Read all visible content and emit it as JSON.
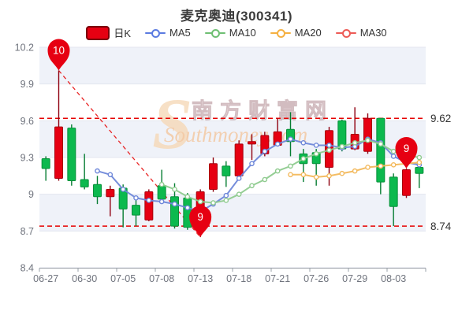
{
  "title": "麦克奥迪(300341)",
  "legend": [
    {
      "label": "日K",
      "type": "candle",
      "color": "#e60012"
    },
    {
      "label": "MA5",
      "type": "line",
      "color": "#5b7be0"
    },
    {
      "label": "MA10",
      "type": "line",
      "color": "#6fbf73"
    },
    {
      "label": "MA20",
      "type": "line",
      "color": "#f5b041"
    },
    {
      "label": "MA30",
      "type": "line",
      "color": "#ed5b56"
    }
  ],
  "watermark": {
    "cn": "南方财富网",
    "en": "Southmoney.com",
    "logo": "S"
  },
  "colors": {
    "up": "#0cb94e",
    "up_border": "#07903a",
    "up_wick": "#067d32",
    "down": "#e60012",
    "down_border": "#a8000d",
    "down_wick": "#8f0010",
    "ma5": "#6e87d9",
    "ma10": "#8fcb8f",
    "ma20": "#f3b95c",
    "ma30": "#f16a6a",
    "ref": "#e60000",
    "marker": "#e60012",
    "marker_text": "#ffffff",
    "grid": "#e3e6ef",
    "band": "#eff2f9",
    "axis": "#9aa0a8",
    "label": "#70747e",
    "ref_label": "#333333",
    "wm_cn_fill": "#ece2e2",
    "wm_cn_stroke": "#d2bcc0",
    "wm_en": "#f3c9a4",
    "wm_logo": "#f6d9b8"
  },
  "chart_data": {
    "type": "candlestick",
    "title": "麦克奥迪(300341)",
    "ylim": [
      8.4,
      10.2
    ],
    "yticks": [
      {
        "label": "10.2",
        "value": 10.2
      },
      {
        "label": "9.9",
        "value": 9.9
      },
      {
        "label": "9.6",
        "value": 9.6
      },
      {
        "label": "9.3",
        "value": 9.3
      },
      {
        "label": "9",
        "value": 9.0
      },
      {
        "label": "8.7",
        "value": 8.7
      },
      {
        "label": "8.4",
        "value": 8.4
      }
    ],
    "x_label_every": 3,
    "x_labels_shown": [
      "06-27",
      "06-30",
      "07-05",
      "07-08",
      "07-13",
      "07-18",
      "07-21",
      "07-26",
      "07-29",
      "08-03"
    ],
    "candles": [
      {
        "date": "06-27",
        "open": 9.21,
        "close": 9.29,
        "low": 9.11,
        "high": 9.31
      },
      {
        "date": "06-28",
        "open": 9.55,
        "close": 9.13,
        "low": 9.11,
        "high": 10.01
      },
      {
        "date": "06-29",
        "open": 9.11,
        "close": 9.54,
        "low": 9.07,
        "high": 9.57
      },
      {
        "date": "06-30",
        "open": 9.06,
        "close": 9.12,
        "low": 9.04,
        "high": 9.33
      },
      {
        "date": "07-01",
        "open": 8.98,
        "close": 9.08,
        "low": 8.92,
        "high": 9.15
      },
      {
        "date": "07-04",
        "open": 9.04,
        "close": 8.98,
        "low": 8.82,
        "high": 9.07
      },
      {
        "date": "07-05",
        "open": 8.88,
        "close": 9.05,
        "low": 8.73,
        "high": 9.08
      },
      {
        "date": "07-06",
        "open": 8.83,
        "close": 8.91,
        "low": 8.74,
        "high": 8.95
      },
      {
        "date": "07-07",
        "open": 9.02,
        "close": 8.79,
        "low": 8.78,
        "high": 9.04
      },
      {
        "date": "07-08",
        "open": 8.96,
        "close": 9.07,
        "low": 8.94,
        "high": 9.2
      },
      {
        "date": "07-11",
        "open": 8.74,
        "close": 8.98,
        "low": 8.72,
        "high": 9.09
      },
      {
        "date": "07-12",
        "open": 8.73,
        "close": 8.97,
        "low": 8.71,
        "high": 9.01
      },
      {
        "date": "07-13",
        "open": 9.02,
        "close": 8.75,
        "low": 8.65,
        "high": 9.04
      },
      {
        "date": "07-14",
        "open": 9.25,
        "close": 9.04,
        "low": 9.02,
        "high": 9.3
      },
      {
        "date": "07-15",
        "open": 9.15,
        "close": 9.23,
        "low": 9.06,
        "high": 9.27
      },
      {
        "date": "07-18",
        "open": 9.41,
        "close": 9.15,
        "low": 9.13,
        "high": 9.44
      },
      {
        "date": "07-19",
        "open": 9.43,
        "close": 9.41,
        "low": 9.28,
        "high": 9.49
      },
      {
        "date": "07-20",
        "open": 9.48,
        "close": 9.33,
        "low": 9.31,
        "high": 9.51
      },
      {
        "date": "07-21",
        "open": 9.51,
        "close": 9.4,
        "low": 9.39,
        "high": 9.62
      },
      {
        "date": "07-22",
        "open": 9.43,
        "close": 9.53,
        "low": 9.31,
        "high": 9.67
      },
      {
        "date": "07-25",
        "open": 9.25,
        "close": 9.33,
        "low": 9.1,
        "high": 9.37
      },
      {
        "date": "07-26",
        "open": 9.25,
        "close": 9.34,
        "low": 9.07,
        "high": 9.37
      },
      {
        "date": "07-27",
        "open": 9.52,
        "close": 9.22,
        "low": 9.07,
        "high": 9.55
      },
      {
        "date": "07-28",
        "open": 9.37,
        "close": 9.6,
        "low": 9.35,
        "high": 9.61
      },
      {
        "date": "07-29",
        "open": 9.49,
        "close": 9.37,
        "low": 9.36,
        "high": 9.71
      },
      {
        "date": "08-01",
        "open": 9.62,
        "close": 9.35,
        "low": 9.33,
        "high": 9.66
      },
      {
        "date": "08-02",
        "open": 9.1,
        "close": 9.62,
        "low": 9.0,
        "high": 9.62
      },
      {
        "date": "08-03",
        "open": 8.9,
        "close": 9.14,
        "low": 8.74,
        "high": 9.17
      },
      {
        "date": "08-04",
        "open": 9.2,
        "close": 8.99,
        "low": 8.97,
        "high": 9.21
      },
      {
        "date": "08-05",
        "open": 9.17,
        "close": 9.22,
        "low": 9.05,
        "high": 9.25
      }
    ],
    "series": [
      {
        "name": "MA5",
        "start": 4,
        "values": [
          9.19,
          9.16,
          9.04,
          8.97,
          8.95,
          8.94,
          8.92,
          8.89,
          8.86,
          8.92,
          8.99,
          9.13,
          9.25,
          9.35,
          9.41,
          9.45,
          9.42,
          9.4,
          9.4,
          9.38,
          9.39,
          9.45,
          9.42,
          9.31,
          9.26,
          9.24
        ]
      },
      {
        "name": "MA10",
        "start": 9,
        "values": [
          9.08,
          9.04,
          8.98,
          8.94,
          8.93,
          8.95,
          9.0,
          9.07,
          9.12,
          9.19,
          9.23,
          9.29,
          9.33,
          9.36,
          9.39,
          9.42,
          9.44,
          9.41,
          9.35,
          9.32,
          9.3
        ]
      },
      {
        "name": "MA20",
        "start": 19,
        "values": [
          9.16,
          9.16,
          9.14,
          9.15,
          9.17,
          9.19,
          9.22,
          9.23,
          9.24,
          9.25,
          9.26
        ]
      },
      {
        "name": "MA30",
        "start": 29,
        "values": []
      }
    ],
    "ref_lines": [
      {
        "label": "9.62",
        "value": 9.62
      },
      {
        "label": "8.74",
        "value": 8.74
      }
    ],
    "markers": [
      {
        "label": "10",
        "index": 1,
        "price": 10.01,
        "kind": "max"
      },
      {
        "label": "9",
        "index": 12,
        "price": 8.65,
        "kind": "min"
      },
      {
        "label": "9",
        "index": 28,
        "price": 9.21,
        "kind": "last"
      }
    ],
    "trend_line": {
      "from_index": 1,
      "from_price": 10.01,
      "to_index": 12,
      "to_price": 8.65
    },
    "legend_entries": [
      "日K",
      "MA5",
      "MA10",
      "MA20",
      "MA30"
    ]
  }
}
